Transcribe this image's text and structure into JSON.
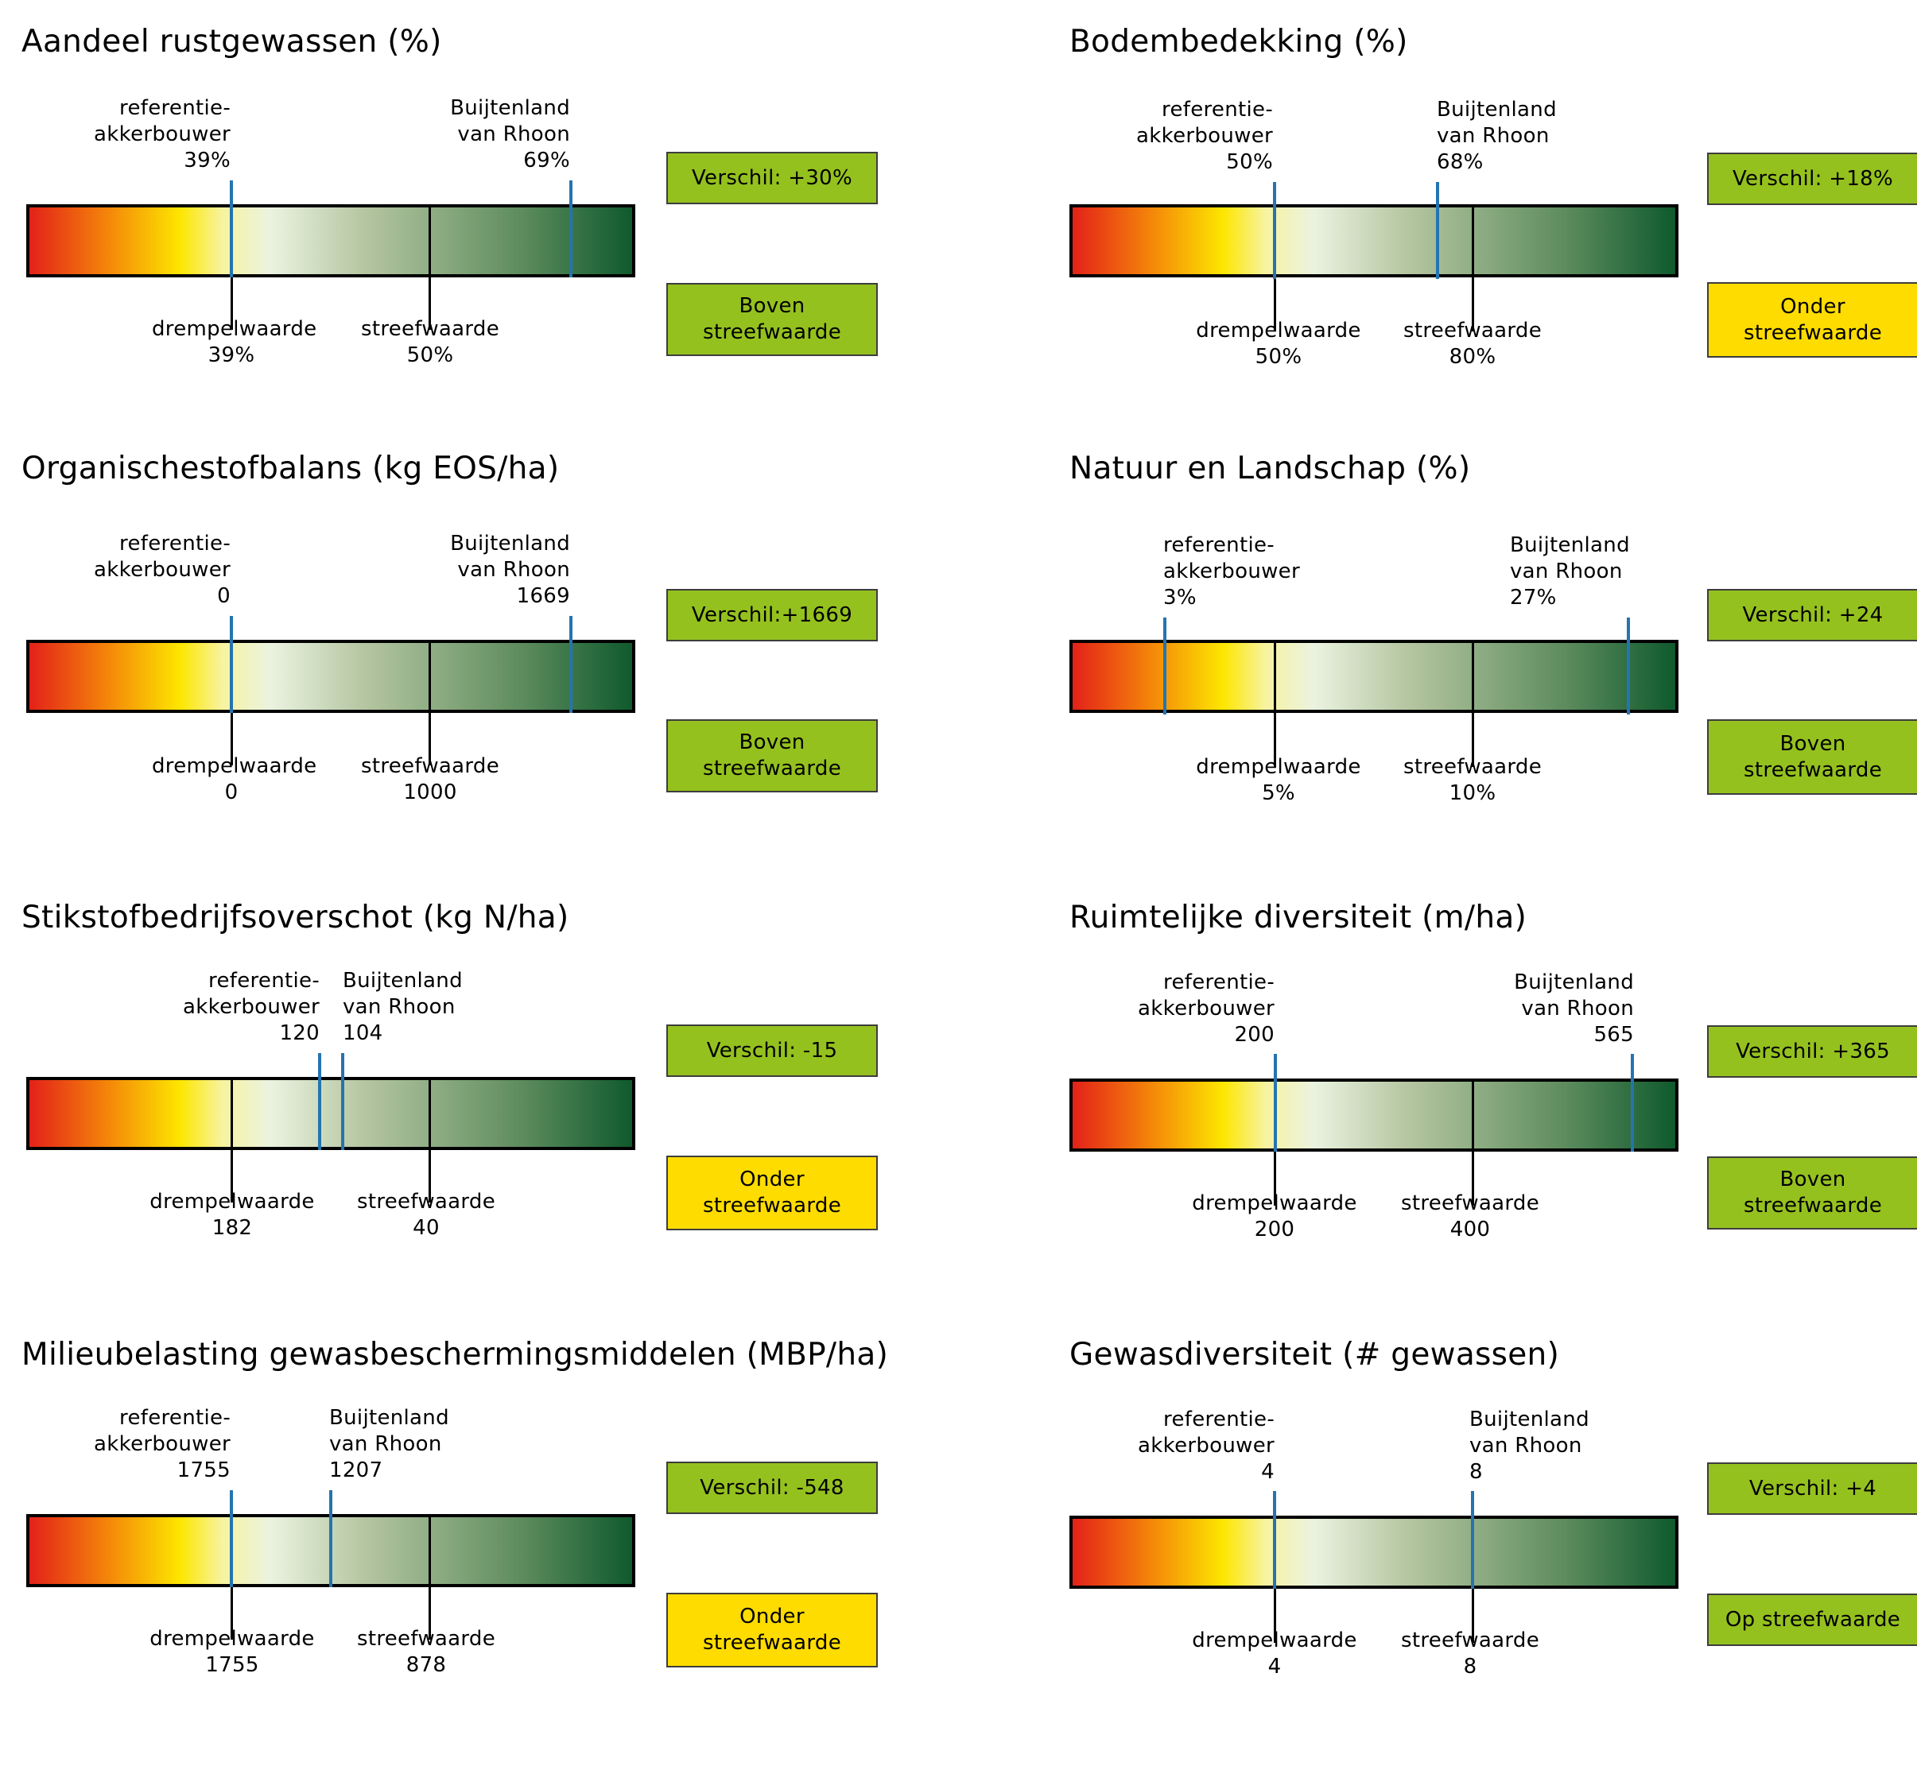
{
  "colors": {
    "green_box": "#95c11f",
    "yellow_box": "#ffdc00",
    "pointer": "#2574b0",
    "gradient": [
      "#e32119",
      "#fde600",
      "#eaf3e0",
      "#0f5a2d"
    ]
  },
  "chart_data": [
    {
      "type": "bullet-gauge",
      "title": "Aandeel rustgewassen (%)",
      "reference": {
        "label": "referentie-\nakkerbouwer\n39%",
        "value": 39
      },
      "farm": {
        "label": "Buijtenland\nvan Rhoon\n69%",
        "value": 69
      },
      "threshold": {
        "label": "drempelwaarde\n39%",
        "value": 39
      },
      "target": {
        "label": "streefwaarde\n50%",
        "value": 50
      },
      "difference": "Verschil: +30%",
      "verdict": "Boven\nstreefwaarde",
      "verdict_color": "#95c11f"
    },
    {
      "type": "bullet-gauge",
      "title": "Bodembedekking (%)",
      "reference": {
        "label": "referentie-\nakkerbouwer\n50%",
        "value": 50
      },
      "farm": {
        "label": "Buijtenland\nvan Rhoon\n68%",
        "value": 68
      },
      "threshold": {
        "label": "drempelwaarde\n50%",
        "value": 50
      },
      "target": {
        "label": "streefwaarde\n80%",
        "value": 80
      },
      "difference": "Verschil: +18%",
      "verdict": "Onder\nstreefwaarde",
      "verdict_color": "#ffdc00"
    },
    {
      "type": "bullet-gauge",
      "title": "Organischestofbalans (kg EOS/ha)",
      "reference": {
        "label": "referentie-\nakkerbouwer\n0",
        "value": 0
      },
      "farm": {
        "label": "Buijtenland\nvan Rhoon\n1669",
        "value": 1669
      },
      "threshold": {
        "label": "drempelwaarde\n0",
        "value": 0
      },
      "target": {
        "label": "streefwaarde\n1000",
        "value": 1000
      },
      "difference": "Verschil:+1669",
      "verdict": "Boven\nstreefwaarde",
      "verdict_color": "#95c11f"
    },
    {
      "type": "bullet-gauge",
      "title": "Natuur en Landschap (%)",
      "reference": {
        "label": "referentie-\nakkerbouwer\n3%",
        "value": 3
      },
      "farm": {
        "label": "Buijtenland\nvan Rhoon\n27%",
        "value": 27
      },
      "threshold": {
        "label": "drempelwaarde\n5%",
        "value": 5
      },
      "target": {
        "label": "streefwaarde\n10%",
        "value": 10
      },
      "difference": "Verschil: +24",
      "verdict": "Boven\nstreefwaarde",
      "verdict_color": "#95c11f"
    },
    {
      "type": "bullet-gauge",
      "title": "Stikstofbedrijfsoverschot (kg N/ha)",
      "reference": {
        "label": "referentie-\nakkerbouwer\n120",
        "value": 120
      },
      "farm": {
        "label": "Buijtenland\nvan Rhoon\n104",
        "value": 104
      },
      "threshold": {
        "label": "drempelwaarde\n182",
        "value": 182
      },
      "target": {
        "label": "streefwaarde\n40",
        "value": 40
      },
      "difference": "Verschil: -15",
      "verdict": "Onder\nstreefwaarde",
      "verdict_color": "#ffdc00"
    },
    {
      "type": "bullet-gauge",
      "title": "Ruimtelijke diversiteit (m/ha)",
      "reference": {
        "label": "referentie-\nakkerbouwer\n200",
        "value": 200
      },
      "farm": {
        "label": "Buijtenland\nvan Rhoon\n565",
        "value": 565
      },
      "threshold": {
        "label": "drempelwaarde\n200",
        "value": 200
      },
      "target": {
        "label": "streefwaarde\n400",
        "value": 400
      },
      "difference": "Verschil: +365",
      "verdict": "Boven\nstreefwaarde",
      "verdict_color": "#95c11f"
    },
    {
      "type": "bullet-gauge",
      "title": "Milieubelasting gewasbeschermingsmiddelen  (MBP/ha)",
      "reference": {
        "label": "referentie-\nakkerbouwer\n1755",
        "value": 1755
      },
      "farm": {
        "label": "Buijtenland\nvan Rhoon\n1207",
        "value": 1207
      },
      "threshold": {
        "label": "drempelwaarde\n1755",
        "value": 1755
      },
      "target": {
        "label": "streefwaarde\n878",
        "value": 878
      },
      "difference": "Verschil: -548",
      "verdict": "Onder\nstreefwaarde",
      "verdict_color": "#ffdc00"
    },
    {
      "type": "bullet-gauge",
      "title": "Gewasdiversiteit (# gewassen)",
      "reference": {
        "label": "referentie-\nakkerbouwer\n4",
        "value": 4
      },
      "farm": {
        "label": "Buijtenland\nvan Rhoon\n8",
        "value": 8
      },
      "threshold": {
        "label": "drempelwaarde\n4",
        "value": 4
      },
      "target": {
        "label": "streefwaarde\n8",
        "value": 8
      },
      "difference": "Verschil: +4",
      "verdict": "Op streefwaarde",
      "verdict_color": "#95c11f"
    }
  ]
}
